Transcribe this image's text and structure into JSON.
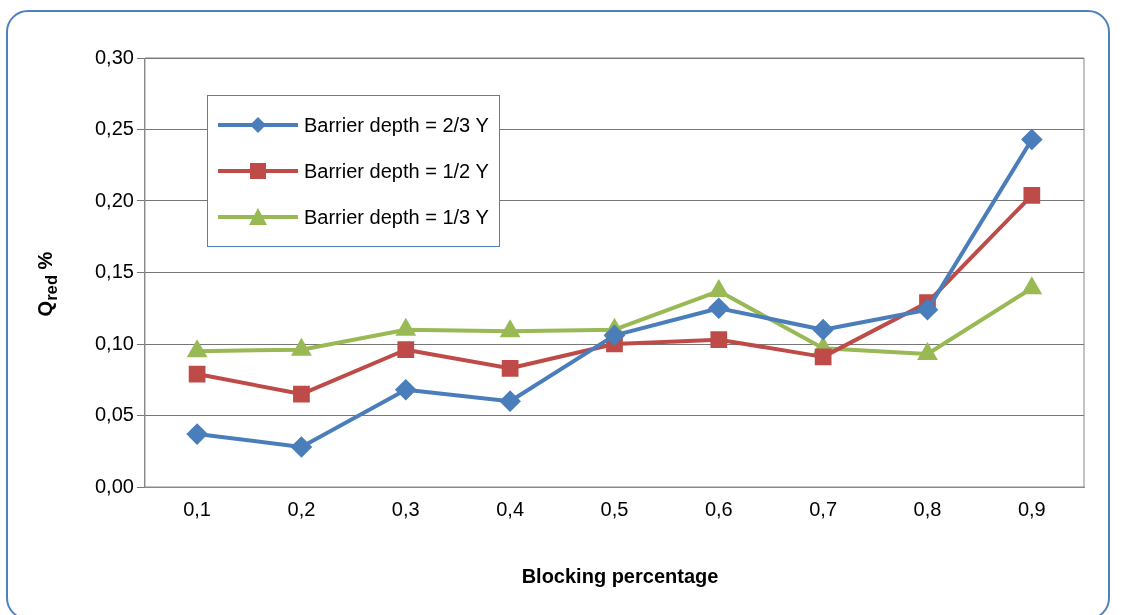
{
  "chart_data": {
    "type": "line",
    "xlabel": "Blocking percentage",
    "ylabel": "Q$_{red}$ %",
    "categories": [
      "0,1",
      "0,2",
      "0,3",
      "0,4",
      "0,5",
      "0,6",
      "0,7",
      "0,8",
      "0,9"
    ],
    "series": [
      {
        "name": "Barrier depth = 2/3 Y",
        "color": "#4a7ebb",
        "marker": "diamond",
        "values": [
          0.037,
          0.028,
          0.068,
          0.06,
          0.106,
          0.125,
          0.11,
          0.124,
          0.243
        ]
      },
      {
        "name": "Barrier depth = 1/2 Y",
        "color": "#be4b48",
        "marker": "square",
        "values": [
          0.079,
          0.065,
          0.096,
          0.083,
          0.1,
          0.103,
          0.091,
          0.129,
          0.204
        ]
      },
      {
        "name": "Barrier depth = 1/3 Y",
        "color": "#98b954",
        "marker": "triangle",
        "values": [
          0.095,
          0.096,
          0.11,
          0.109,
          0.11,
          0.137,
          0.097,
          0.093,
          0.139
        ]
      }
    ],
    "ylim": [
      0,
      0.3
    ],
    "yticks": [
      {
        "value": 0,
        "label": "0,00"
      },
      {
        "value": 0.05,
        "label": "0,05"
      },
      {
        "value": 0.1,
        "label": "0,10"
      },
      {
        "value": 0.15,
        "label": "0,15"
      },
      {
        "value": 0.2,
        "label": "0,20"
      },
      {
        "value": 0.25,
        "label": "0,25"
      },
      {
        "value": 0.3,
        "label": "0,30"
      }
    ],
    "grid": "y",
    "legend": "top left"
  }
}
